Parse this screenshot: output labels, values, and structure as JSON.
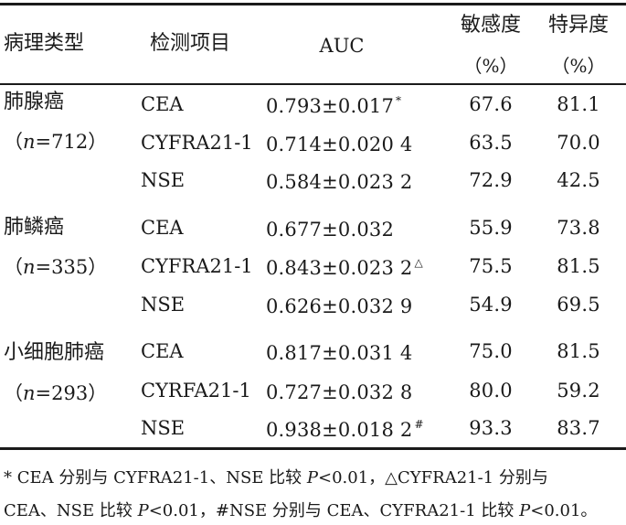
{
  "table": {
    "headers": {
      "type": "病理类型",
      "item": "检测项目",
      "auc": "AUC",
      "sens": "敏感度",
      "sens_unit": "（%）",
      "spec": "特异度",
      "spec_unit": "（%）"
    },
    "groups": [
      {
        "name": "肺腺癌",
        "n_prefix": "（",
        "n_var": "n",
        "n_value": "=712）",
        "rows": [
          {
            "item": "CEA",
            "auc": "0.793±0.017",
            "auc_mark": "*",
            "sens": "67.6",
            "spec": "81.1"
          },
          {
            "item": "CYFRA21-1",
            "auc": "0.714±0.020 4",
            "auc_mark": "",
            "sens": "63.5",
            "spec": "70.0"
          },
          {
            "item": "NSE",
            "auc": "0.584±0.023 2",
            "auc_mark": "",
            "sens": "72.9",
            "spec": "42.5"
          }
        ]
      },
      {
        "name": "肺鳞癌",
        "n_prefix": "（",
        "n_var": "n",
        "n_value": "=335）",
        "rows": [
          {
            "item": "CEA",
            "auc": "0.677±0.032",
            "auc_mark": "",
            "sens": "55.9",
            "spec": "73.8"
          },
          {
            "item": "CYFRA21-1",
            "auc": "0.843±0.023 2",
            "auc_mark": "△",
            "sens": "75.5",
            "spec": "81.5"
          },
          {
            "item": "NSE",
            "auc": "0.626±0.032 9",
            "auc_mark": "",
            "sens": "54.9",
            "spec": "69.5"
          }
        ]
      },
      {
        "name": "小细胞肺癌",
        "n_prefix": "（",
        "n_var": "n",
        "n_value": "=293）",
        "rows": [
          {
            "item": "CEA",
            "auc": "0.817±0.031 4",
            "auc_mark": "",
            "sens": "75.0",
            "spec": "81.5"
          },
          {
            "item": "CYRFA21-1",
            "auc": "0.727±0.032 8",
            "auc_mark": "",
            "sens": "80.0",
            "spec": "59.2"
          },
          {
            "item": "NSE",
            "auc": "0.938±0.018 2",
            "auc_mark": "#",
            "sens": "93.3",
            "spec": "83.7"
          }
        ]
      }
    ]
  },
  "footnote": {
    "line1_a": "* CEA 分别与 CYFRA21-1、NSE 比较 ",
    "line1_p": "P",
    "line1_b": "<0.01，△CYFRA21-1 分别与",
    "line2_a": "CEA、NSE 比较 ",
    "line2_p": "P",
    "line2_b": "<0.01，#NSE 分别与 CEA、CYFRA21-1 比较 ",
    "line2_p2": "P",
    "line2_c": "<0.01。"
  }
}
